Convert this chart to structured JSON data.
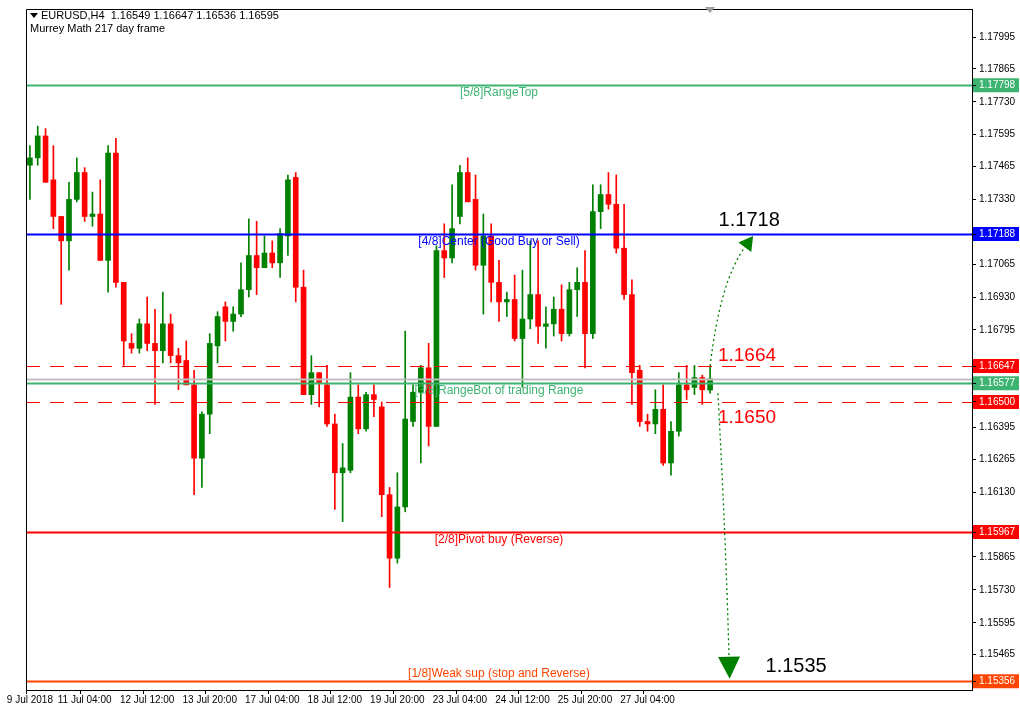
{
  "chart_data": {
    "type": "candlestick",
    "title": "EURUSD,H4  1.16549 1.16647 1.16536 1.16595",
    "subtitle": "Murrey Math 217 day frame",
    "categories": [
      "9 Jul 2018",
      null,
      null,
      null,
      null,
      null,
      null,
      "11 Jul 04:00",
      null,
      null,
      null,
      null,
      null,
      null,
      null,
      "12 Jul 12:00",
      null,
      null,
      null,
      null,
      null,
      null,
      null,
      "13 Jul 20:00",
      null,
      null,
      null,
      null,
      null,
      null,
      null,
      "17 Jul 04:00",
      null,
      null,
      null,
      null,
      null,
      null,
      null,
      "18 Jul 12:00",
      null,
      null,
      null,
      null,
      null,
      null,
      null,
      "19 Jul 20:00",
      null,
      null,
      null,
      null,
      null,
      null,
      null,
      "23 Jul 04:00",
      null,
      null,
      null,
      null,
      null,
      null,
      null,
      "24 Jul 12:00",
      null,
      null,
      null,
      null,
      null,
      null,
      null,
      "25 Jul 20:00",
      null,
      null,
      null,
      null,
      null,
      null,
      null,
      "27 Jul 04:00",
      null,
      null,
      null,
      null,
      null,
      null,
      null,
      null,
      null,
      null,
      null,
      null,
      null,
      null,
      null,
      null,
      null,
      null,
      null,
      null,
      null,
      null,
      null,
      null,
      null,
      null,
      null,
      null,
      null,
      null,
      null,
      null,
      null,
      null,
      null,
      null,
      null,
      null,
      null,
      null,
      null
    ],
    "ohlc": [
      [
        1.1747,
        1.1755,
        1.1733,
        1.175
      ],
      [
        1.175,
        1.1763,
        1.1747,
        1.1759
      ],
      [
        1.1759,
        1.1762,
        1.174,
        1.174
      ],
      [
        1.1741,
        1.1755,
        1.1721,
        1.1726
      ],
      [
        1.1726,
        1.1726,
        1.169,
        1.1716
      ],
      [
        1.1716,
        1.174,
        1.1704,
        1.1733
      ],
      [
        1.1733,
        1.175,
        1.1732,
        1.1744
      ],
      [
        1.1744,
        1.1746,
        1.1724,
        1.1726
      ],
      [
        1.1726,
        1.1736,
        1.1722,
        1.1727
      ],
      [
        1.1727,
        1.1741,
        1.1708,
        1.1708
      ],
      [
        1.1708,
        1.1755,
        1.1695,
        1.1752
      ],
      [
        1.1752,
        1.1758,
        1.1697,
        1.1699
      ],
      [
        1.1699,
        1.1699,
        1.1665,
        1.1675
      ],
      [
        1.1674,
        1.1678,
        1.167,
        1.1672
      ],
      [
        1.1672,
        1.1684,
        1.167,
        1.1682
      ],
      [
        1.1682,
        1.1693,
        1.1671,
        1.1674
      ],
      [
        1.1674,
        1.1688,
        1.1649,
        1.1671
      ],
      [
        1.1671,
        1.1695,
        1.1666,
        1.1682
      ],
      [
        1.1682,
        1.1686,
        1.1666,
        1.1669
      ],
      [
        1.1669,
        1.1672,
        1.1655,
        1.1666
      ],
      [
        1.1667,
        1.1675,
        1.1657,
        1.1657
      ],
      [
        1.1657,
        1.1663,
        1.1612,
        1.1627
      ],
      [
        1.1627,
        1.1646,
        1.1615,
        1.1645
      ],
      [
        1.1645,
        1.1678,
        1.1637,
        1.1674
      ],
      [
        1.1673,
        1.1687,
        1.1666,
        1.1685
      ],
      [
        1.1689,
        1.1691,
        1.1675,
        1.1683
      ],
      [
        1.1683,
        1.1689,
        1.1679,
        1.1686
      ],
      [
        1.1686,
        1.1707,
        1.1685,
        1.1696
      ],
      [
        1.1696,
        1.1725,
        1.1693,
        1.171
      ],
      [
        1.171,
        1.1724,
        1.1694,
        1.1705
      ],
      [
        1.1705,
        1.1718,
        1.1705,
        1.1711
      ],
      [
        1.1711,
        1.1716,
        1.1705,
        1.1707
      ],
      [
        1.1707,
        1.1721,
        1.1701,
        1.1719
      ],
      [
        1.1718,
        1.1743,
        1.171,
        1.1741
      ],
      [
        1.1742,
        1.1744,
        1.1691,
        1.1697
      ],
      [
        1.1697,
        1.1704,
        1.1653,
        1.1653
      ],
      [
        1.1653,
        1.1669,
        1.1649,
        1.1662
      ],
      [
        1.1662,
        1.1662,
        1.1648,
        1.1658
      ],
      [
        1.1657,
        1.1665,
        1.164,
        1.1641
      ],
      [
        1.1641,
        1.1645,
        1.1606,
        1.1621
      ],
      [
        1.1621,
        1.1633,
        1.1601,
        1.1623
      ],
      [
        1.1622,
        1.1662,
        1.1621,
        1.1652
      ],
      [
        1.1652,
        1.1657,
        1.1637,
        1.1639
      ],
      [
        1.1639,
        1.1654,
        1.1638,
        1.1653
      ],
      [
        1.1653,
        1.1657,
        1.1644,
        1.1651
      ],
      [
        1.1648,
        1.165,
        1.1603,
        1.1612
      ],
      [
        1.1612,
        1.1615,
        1.1574,
        1.1586
      ],
      [
        1.1586,
        1.1621,
        1.1584,
        1.1607
      ],
      [
        1.1607,
        1.1679,
        1.1605,
        1.1643
      ],
      [
        1.1642,
        1.1657,
        1.164,
        1.1654
      ],
      [
        1.1654,
        1.1665,
        1.1625,
        1.1664
      ],
      [
        1.1664,
        1.1674,
        1.1632,
        1.164
      ],
      [
        1.164,
        1.1714,
        1.164,
        1.1712
      ],
      [
        1.1712,
        1.1723,
        1.1701,
        1.1709
      ],
      [
        1.1709,
        1.1739,
        1.1707,
        1.1721
      ],
      [
        1.1726,
        1.1747,
        1.1723,
        1.1744
      ],
      [
        1.1744,
        1.175,
        1.1732,
        1.1732
      ],
      [
        1.1733,
        1.1743,
        1.1704,
        1.1706
      ],
      [
        1.1706,
        1.1727,
        1.1686,
        1.1718
      ],
      [
        1.1718,
        1.1723,
        1.1691,
        1.1699
      ],
      [
        1.1699,
        1.1708,
        1.1683,
        1.1691
      ],
      [
        1.1691,
        1.1695,
        1.1685,
        1.1692
      ],
      [
        1.1692,
        1.1702,
        1.1675,
        1.1676
      ],
      [
        1.1676,
        1.1704,
        1.1656,
        1.1684
      ],
      [
        1.1684,
        1.1716,
        1.168,
        1.1694
      ],
      [
        1.1694,
        1.1716,
        1.1674,
        1.1681
      ],
      [
        1.1681,
        1.1689,
        1.1672,
        1.1682
      ],
      [
        1.1682,
        1.1693,
        1.1677,
        1.1688
      ],
      [
        1.1688,
        1.1698,
        1.1675,
        1.1678
      ],
      [
        1.1678,
        1.1699,
        1.1677,
        1.1696
      ],
      [
        1.1696,
        1.1705,
        1.1685,
        1.1699
      ],
      [
        1.1699,
        1.1712,
        1.1664,
        1.1678
      ],
      [
        1.1678,
        1.1739,
        1.1676,
        1.1728
      ],
      [
        1.1728,
        1.1739,
        1.1721,
        1.1735
      ],
      [
        1.1735,
        1.1744,
        1.1729,
        1.1731
      ],
      [
        1.1731,
        1.1743,
        1.1711,
        1.1713
      ],
      [
        1.1713,
        1.1731,
        1.1692,
        1.1694
      ],
      [
        1.1694,
        1.17,
        1.1649,
        1.1662
      ],
      [
        1.1663,
        1.1665,
        1.164,
        1.1642
      ],
      [
        1.1642,
        1.1645,
        1.1638,
        1.1641
      ],
      [
        1.1641,
        1.1655,
        1.1637,
        1.1647
      ],
      [
        1.1647,
        1.1657,
        1.1624,
        1.1625
      ],
      [
        1.1625,
        1.1642,
        1.162,
        1.1638
      ],
      [
        1.1638,
        1.1662,
        1.1636,
        1.1657
      ],
      [
        1.1657,
        1.1665,
        1.1651,
        1.1655
      ],
      [
        1.1656,
        1.1665,
        1.1653,
        1.166
      ],
      [
        1.166,
        1.1661,
        1.1649,
        1.1655
      ],
      [
        1.16549,
        1.16647,
        1.16536,
        1.16595
      ],
      null,
      null,
      null,
      null,
      null,
      null,
      null,
      null,
      null,
      null,
      null,
      null,
      null,
      null,
      null,
      null,
      null,
      null,
      null,
      null,
      null,
      null,
      null,
      null,
      null,
      null,
      null,
      null,
      null,
      null,
      null,
      null,
      null
    ],
    "colors": [
      "#008000",
      "#008000",
      "#ff0000",
      "#ff0000",
      "#ff0000",
      "#008000",
      "#008000",
      "#ff0000",
      "#008000",
      "#ff0000",
      "#008000",
      "#ff0000",
      "#ff0000",
      "#ff0000",
      "#008000",
      "#ff0000",
      "#ff0000",
      "#008000",
      "#ff0000",
      "#ff0000",
      "#ff0000",
      "#ff0000",
      "#008000",
      "#008000",
      "#008000",
      "#ff0000",
      "#008000",
      "#008000",
      "#008000",
      "#ff0000",
      "#008000",
      "#ff0000",
      "#008000",
      "#008000",
      "#ff0000",
      "#ff0000",
      "#008000",
      "#ff0000",
      "#ff0000",
      "#ff0000",
      "#008000",
      "#008000",
      "#ff0000",
      "#008000",
      "#ff0000",
      "#ff0000",
      "#ff0000",
      "#008000",
      "#008000",
      "#008000",
      "#008000",
      "#ff0000",
      "#008000",
      "#ff0000",
      "#008000",
      "#008000",
      "#ff0000",
      "#ff0000",
      "#008000",
      "#ff0000",
      "#ff0000",
      "#008000",
      "#ff0000",
      "#008000",
      "#008000",
      "#ff0000",
      "#008000",
      "#008000",
      "#ff0000",
      "#008000",
      "#008000",
      "#ff0000",
      "#008000",
      "#008000",
      "#ff0000",
      "#ff0000",
      "#ff0000",
      "#ff0000",
      "#ff0000",
      "#ff0000",
      "#008000",
      "#ff0000",
      "#008000",
      "#008000",
      "#ff0000",
      "#008000",
      "#ff0000",
      "#008000",
      null,
      null,
      null,
      null,
      null,
      null,
      null,
      null,
      null,
      null,
      null,
      null,
      null,
      null,
      null,
      null,
      null,
      null,
      null,
      null,
      null,
      null,
      null,
      null,
      null,
      null,
      null,
      null,
      null,
      null,
      null,
      null,
      null
    ],
    "ylim": [
      1.1532,
      1.1811
    ],
    "yticks": [
      1.17995,
      1.17865,
      {
        "value": 1.1773,
        "label": "1.17730"
      },
      1.17595,
      1.17465,
      {
        "value": 1.1733,
        "label": "1.17330"
      },
      1.17065,
      {
        "value": 1.1693,
        "label": "1.16930"
      },
      1.16795,
      1.16395,
      1.16265,
      {
        "value": 1.1613,
        "label": "1.16130"
      },
      1.15865,
      {
        "value": 1.1573,
        "label": "1.15730"
      },
      1.15595,
      1.15465,
      1.17798,
      1.17188,
      1.16647,
      1.16577,
      {
        "value": 1.165,
        "label": "1.16500"
      },
      1.15967,
      1.15356
    ],
    "ref_lines": [
      {
        "axis": "y",
        "value": 1.17798,
        "label": "[5/8]RangeTop",
        "color": "#3cb371"
      },
      {
        "axis": "y",
        "value": 1.17188,
        "label": "[4/8]Center (Good Buy or Sell)",
        "color": "#0000ff"
      },
      {
        "axis": "y",
        "value": 1.16647,
        "color": "#ff0000",
        "line_style": "dashed"
      },
      {
        "axis": "y",
        "value": 1.16595,
        "color": "#c0c0c0"
      },
      {
        "axis": "y",
        "value": 1.16577,
        "label": "[3/8]RangeBot of trading Range",
        "color": "#3cb371"
      },
      {
        "axis": "y",
        "value": 1.165,
        "color": "#ff0000",
        "line_style": "dashed"
      },
      {
        "axis": "y",
        "value": 1.15967,
        "label": "[2/8]Pivot buy (Reverse)",
        "color": "#ff0000"
      },
      {
        "axis": "y",
        "value": 1.15356,
        "label": "[1/8]Weak sup (stop and Reverse)",
        "color": "#ff4500"
      }
    ],
    "annotations": [
      {
        "text": "1.1718",
        "y": 1.1718
      },
      {
        "text": "1.1664",
        "y": 1.1664
      },
      {
        "text": "1.1650",
        "y": 1.165
      },
      {
        "text": "1.1535",
        "y": 1.1535
      }
    ]
  }
}
